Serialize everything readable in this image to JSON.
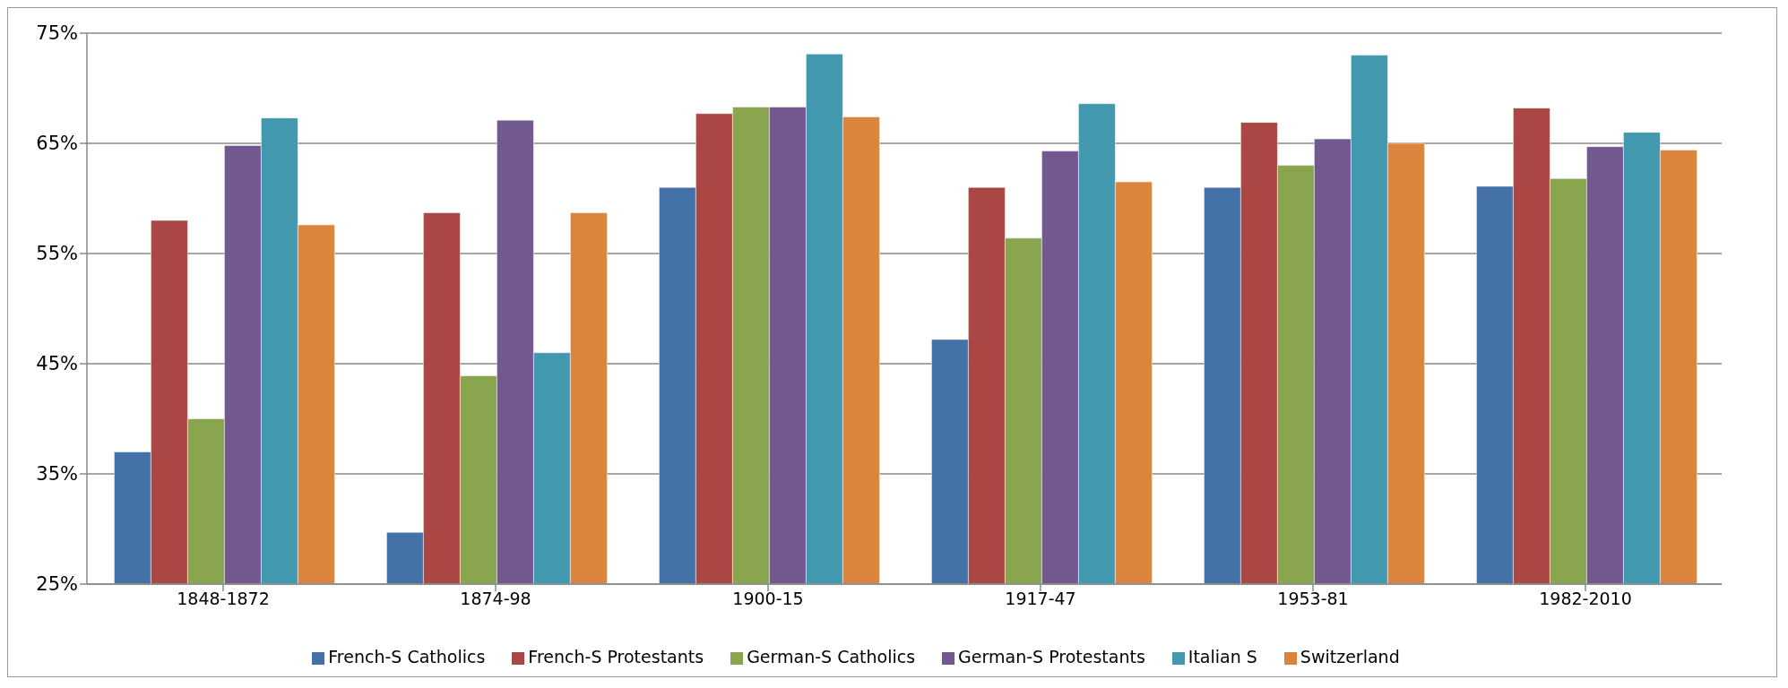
{
  "chart_data": {
    "type": "bar",
    "categories": [
      "1848-1872",
      "1874-98",
      "1900-15",
      "1917-47",
      "1953-81",
      "1982-2010"
    ],
    "series": [
      {
        "name": "French-S Catholics",
        "color": "#4472a8",
        "values": [
          37.0,
          29.7,
          61.0,
          47.2,
          61.0,
          61.1
        ]
      },
      {
        "name": "French-S Protestants",
        "color": "#aa4644",
        "values": [
          58.0,
          58.7,
          67.7,
          61.0,
          66.9,
          68.2
        ]
      },
      {
        "name": "German-S Catholics",
        "color": "#89a54e",
        "values": [
          40.0,
          43.9,
          68.3,
          56.4,
          63.0,
          61.8
        ]
      },
      {
        "name": "German-S Protestants",
        "color": "#71588f",
        "values": [
          64.8,
          67.1,
          68.3,
          64.3,
          65.4,
          64.7
        ]
      },
      {
        "name": "Italian S",
        "color": "#4298af",
        "values": [
          67.3,
          46.0,
          73.1,
          68.6,
          73.0,
          66.0
        ]
      },
      {
        "name": "Switzerland",
        "color": "#db843d",
        "values": [
          57.6,
          58.7,
          67.4,
          61.5,
          65.0,
          64.4
        ]
      }
    ],
    "ylim": [
      25,
      75
    ],
    "yticks": [
      {
        "value": 25,
        "label": "25%"
      },
      {
        "value": 35,
        "label": "35%"
      },
      {
        "value": 45,
        "label": "45%"
      },
      {
        "value": 55,
        "label": "55%"
      },
      {
        "value": 65,
        "label": "65%"
      },
      {
        "value": 75,
        "label": "75%"
      }
    ],
    "grid": "y",
    "legend": "bottom"
  }
}
